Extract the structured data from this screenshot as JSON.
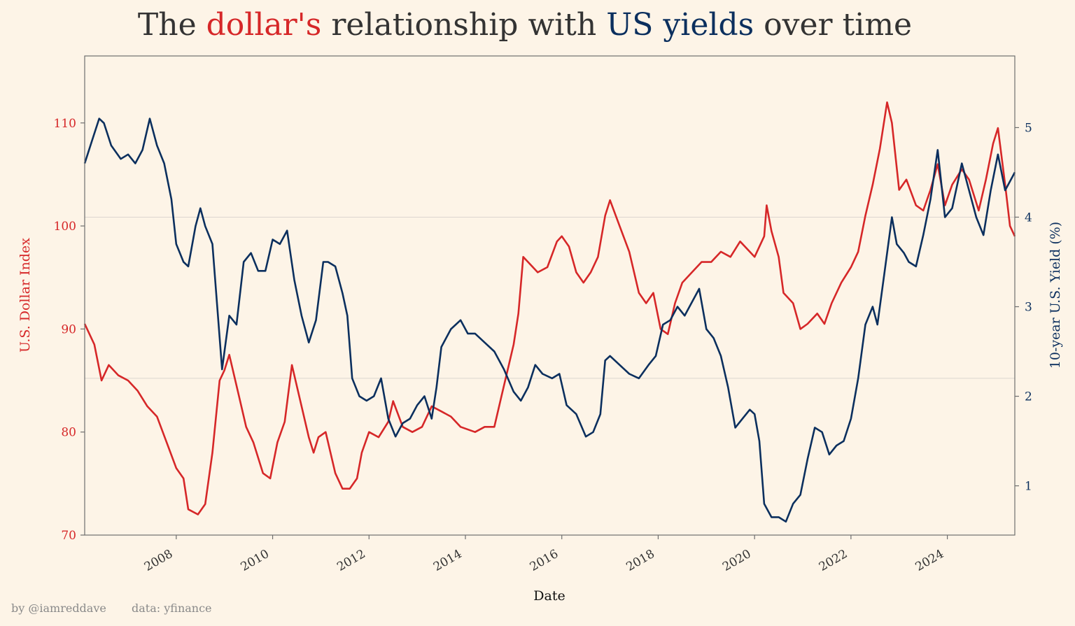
{
  "title": {
    "parts": [
      {
        "text": "The",
        "color": "#333333"
      },
      {
        "text": "dollar's",
        "color": "#d62728"
      },
      {
        "text": "relationship with",
        "color": "#333333"
      },
      {
        "text": "US yields",
        "color": "#0b2f5e"
      },
      {
        "text": "over time",
        "color": "#333333"
      }
    ]
  },
  "credits": {
    "author": "by @iamreddave",
    "source": "data: yfinance"
  },
  "colors": {
    "background": "#fdf4e7",
    "dollar": "#d62728",
    "yield": "#0b2f5e",
    "axis": "#6e6e6e",
    "grid": "#dcd6d0"
  },
  "chart_data": {
    "type": "line",
    "xlabel": "Date",
    "ylabel_left": "U.S. Dollar Index",
    "ylabel_right": "10-year U.S. Yield (%)",
    "xlim": [
      2006.1,
      2025.4
    ],
    "ylim_left": [
      70,
      116.5
    ],
    "ylim_right": [
      0.45,
      5.8
    ],
    "x_ticks": [
      2008,
      2010,
      2012,
      2014,
      2016,
      2018,
      2020,
      2022,
      2024
    ],
    "x_tick_labels": [
      "2008",
      "2010",
      "2012",
      "2014",
      "2016",
      "2018",
      "2020",
      "2022",
      "2024"
    ],
    "y_ticks_left": [
      70,
      80,
      90,
      100,
      110
    ],
    "y_tick_labels_left": [
      "70",
      "80",
      "90",
      "100",
      "110"
    ],
    "y_ticks_right": [
      1,
      2,
      3,
      4,
      5
    ],
    "y_tick_labels_right": [
      "1",
      "2",
      "3",
      "4",
      "5"
    ],
    "grid": "horizontal-right-axis",
    "series": [
      {
        "name": "U.S. Dollar Index",
        "axis": "left",
        "color": "#d62728",
        "points": [
          [
            2006.1,
            90.5
          ],
          [
            2006.3,
            88.5
          ],
          [
            2006.45,
            85.0
          ],
          [
            2006.6,
            86.5
          ],
          [
            2006.8,
            85.5
          ],
          [
            2007.0,
            85.0
          ],
          [
            2007.2,
            84.0
          ],
          [
            2007.4,
            82.5
          ],
          [
            2007.6,
            81.5
          ],
          [
            2007.8,
            79.0
          ],
          [
            2008.0,
            76.5
          ],
          [
            2008.15,
            75.5
          ],
          [
            2008.25,
            72.5
          ],
          [
            2008.45,
            72.0
          ],
          [
            2008.6,
            73.0
          ],
          [
            2008.75,
            78.0
          ],
          [
            2008.9,
            85.0
          ],
          [
            2009.0,
            86.0
          ],
          [
            2009.1,
            87.5
          ],
          [
            2009.2,
            85.5
          ],
          [
            2009.3,
            83.5
          ],
          [
            2009.45,
            80.5
          ],
          [
            2009.6,
            79.0
          ],
          [
            2009.8,
            76.0
          ],
          [
            2009.95,
            75.5
          ],
          [
            2010.1,
            79.0
          ],
          [
            2010.25,
            81.0
          ],
          [
            2010.4,
            86.5
          ],
          [
            2010.5,
            84.5
          ],
          [
            2010.6,
            82.5
          ],
          [
            2010.75,
            79.5
          ],
          [
            2010.85,
            78.0
          ],
          [
            2010.95,
            79.5
          ],
          [
            2011.1,
            80.0
          ],
          [
            2011.3,
            76.0
          ],
          [
            2011.45,
            74.5
          ],
          [
            2011.6,
            74.5
          ],
          [
            2011.75,
            75.5
          ],
          [
            2011.85,
            78.0
          ],
          [
            2012.0,
            80.0
          ],
          [
            2012.2,
            79.5
          ],
          [
            2012.4,
            81.0
          ],
          [
            2012.5,
            83.0
          ],
          [
            2012.7,
            80.5
          ],
          [
            2012.9,
            80.0
          ],
          [
            2013.1,
            80.5
          ],
          [
            2013.3,
            82.5
          ],
          [
            2013.5,
            82.0
          ],
          [
            2013.7,
            81.5
          ],
          [
            2013.9,
            80.5
          ],
          [
            2014.2,
            80.0
          ],
          [
            2014.4,
            80.5
          ],
          [
            2014.6,
            80.5
          ],
          [
            2014.75,
            83.5
          ],
          [
            2014.9,
            86.5
          ],
          [
            2015.0,
            88.5
          ],
          [
            2015.1,
            91.5
          ],
          [
            2015.2,
            97.0
          ],
          [
            2015.3,
            96.5
          ],
          [
            2015.5,
            95.5
          ],
          [
            2015.7,
            96.0
          ],
          [
            2015.9,
            98.5
          ],
          [
            2016.0,
            99.0
          ],
          [
            2016.15,
            98.0
          ],
          [
            2016.3,
            95.5
          ],
          [
            2016.45,
            94.5
          ],
          [
            2016.6,
            95.5
          ],
          [
            2016.75,
            97.0
          ],
          [
            2016.9,
            101.0
          ],
          [
            2017.0,
            102.5
          ],
          [
            2017.2,
            100.0
          ],
          [
            2017.4,
            97.5
          ],
          [
            2017.6,
            93.5
          ],
          [
            2017.75,
            92.5
          ],
          [
            2017.9,
            93.5
          ],
          [
            2018.05,
            90.0
          ],
          [
            2018.2,
            89.5
          ],
          [
            2018.35,
            92.5
          ],
          [
            2018.5,
            94.5
          ],
          [
            2018.7,
            95.5
          ],
          [
            2018.9,
            96.5
          ],
          [
            2019.1,
            96.5
          ],
          [
            2019.3,
            97.5
          ],
          [
            2019.5,
            97.0
          ],
          [
            2019.7,
            98.5
          ],
          [
            2019.9,
            97.5
          ],
          [
            2020.0,
            97.0
          ],
          [
            2020.2,
            99.0
          ],
          [
            2020.25,
            102.0
          ],
          [
            2020.35,
            99.5
          ],
          [
            2020.5,
            97.0
          ],
          [
            2020.6,
            93.5
          ],
          [
            2020.8,
            92.5
          ],
          [
            2020.95,
            90.0
          ],
          [
            2021.1,
            90.5
          ],
          [
            2021.3,
            91.5
          ],
          [
            2021.45,
            90.5
          ],
          [
            2021.6,
            92.5
          ],
          [
            2021.8,
            94.5
          ],
          [
            2022.0,
            96.0
          ],
          [
            2022.15,
            97.5
          ],
          [
            2022.3,
            101.0
          ],
          [
            2022.45,
            104.0
          ],
          [
            2022.6,
            107.5
          ],
          [
            2022.75,
            112.0
          ],
          [
            2022.85,
            110.0
          ],
          [
            2023.0,
            103.5
          ],
          [
            2023.15,
            104.5
          ],
          [
            2023.35,
            102.0
          ],
          [
            2023.5,
            101.5
          ],
          [
            2023.65,
            103.5
          ],
          [
            2023.8,
            106.0
          ],
          [
            2023.95,
            102.0
          ],
          [
            2024.1,
            104.0
          ],
          [
            2024.3,
            105.5
          ],
          [
            2024.45,
            104.5
          ],
          [
            2024.65,
            101.5
          ],
          [
            2024.8,
            104.5
          ],
          [
            2024.95,
            108.0
          ],
          [
            2025.05,
            109.5
          ],
          [
            2025.2,
            104.0
          ],
          [
            2025.3,
            100.0
          ],
          [
            2025.4,
            99.0
          ]
        ]
      },
      {
        "name": "10-year U.S. Yield (%)",
        "axis": "right",
        "color": "#0b2f5e",
        "points": [
          [
            2006.1,
            4.6
          ],
          [
            2006.25,
            4.85
          ],
          [
            2006.4,
            5.1
          ],
          [
            2006.5,
            5.05
          ],
          [
            2006.65,
            4.8
          ],
          [
            2006.85,
            4.65
          ],
          [
            2007.0,
            4.7
          ],
          [
            2007.15,
            4.6
          ],
          [
            2007.3,
            4.75
          ],
          [
            2007.45,
            5.1
          ],
          [
            2007.6,
            4.8
          ],
          [
            2007.75,
            4.6
          ],
          [
            2007.9,
            4.2
          ],
          [
            2008.0,
            3.7
          ],
          [
            2008.15,
            3.5
          ],
          [
            2008.25,
            3.45
          ],
          [
            2008.4,
            3.9
          ],
          [
            2008.5,
            4.1
          ],
          [
            2008.6,
            3.9
          ],
          [
            2008.75,
            3.7
          ],
          [
            2008.85,
            3.0
          ],
          [
            2008.95,
            2.3
          ],
          [
            2009.1,
            2.9
          ],
          [
            2009.25,
            2.8
          ],
          [
            2009.4,
            3.5
          ],
          [
            2009.55,
            3.6
          ],
          [
            2009.7,
            3.4
          ],
          [
            2009.85,
            3.4
          ],
          [
            2010.0,
            3.75
          ],
          [
            2010.15,
            3.7
          ],
          [
            2010.3,
            3.85
          ],
          [
            2010.45,
            3.3
          ],
          [
            2010.6,
            2.9
          ],
          [
            2010.75,
            2.6
          ],
          [
            2010.9,
            2.85
          ],
          [
            2011.05,
            3.5
          ],
          [
            2011.15,
            3.5
          ],
          [
            2011.3,
            3.45
          ],
          [
            2011.45,
            3.15
          ],
          [
            2011.55,
            2.9
          ],
          [
            2011.65,
            2.2
          ],
          [
            2011.8,
            2.0
          ],
          [
            2011.95,
            1.95
          ],
          [
            2012.1,
            2.0
          ],
          [
            2012.25,
            2.2
          ],
          [
            2012.4,
            1.75
          ],
          [
            2012.55,
            1.55
          ],
          [
            2012.7,
            1.7
          ],
          [
            2012.85,
            1.75
          ],
          [
            2013.0,
            1.9
          ],
          [
            2013.15,
            2.0
          ],
          [
            2013.3,
            1.75
          ],
          [
            2013.4,
            2.1
          ],
          [
            2013.5,
            2.55
          ],
          [
            2013.7,
            2.75
          ],
          [
            2013.9,
            2.85
          ],
          [
            2014.05,
            2.7
          ],
          [
            2014.2,
            2.7
          ],
          [
            2014.4,
            2.6
          ],
          [
            2014.6,
            2.5
          ],
          [
            2014.8,
            2.3
          ],
          [
            2015.0,
            2.05
          ],
          [
            2015.15,
            1.95
          ],
          [
            2015.3,
            2.1
          ],
          [
            2015.45,
            2.35
          ],
          [
            2015.6,
            2.25
          ],
          [
            2015.8,
            2.2
          ],
          [
            2015.95,
            2.25
          ],
          [
            2016.1,
            1.9
          ],
          [
            2016.3,
            1.8
          ],
          [
            2016.5,
            1.55
          ],
          [
            2016.65,
            1.6
          ],
          [
            2016.8,
            1.8
          ],
          [
            2016.9,
            2.4
          ],
          [
            2017.0,
            2.45
          ],
          [
            2017.2,
            2.35
          ],
          [
            2017.4,
            2.25
          ],
          [
            2017.6,
            2.2
          ],
          [
            2017.8,
            2.35
          ],
          [
            2017.95,
            2.45
          ],
          [
            2018.1,
            2.8
          ],
          [
            2018.25,
            2.85
          ],
          [
            2018.4,
            3.0
          ],
          [
            2018.55,
            2.9
          ],
          [
            2018.7,
            3.05
          ],
          [
            2018.85,
            3.2
          ],
          [
            2019.0,
            2.75
          ],
          [
            2019.15,
            2.65
          ],
          [
            2019.3,
            2.45
          ],
          [
            2019.45,
            2.1
          ],
          [
            2019.6,
            1.65
          ],
          [
            2019.75,
            1.75
          ],
          [
            2019.9,
            1.85
          ],
          [
            2020.0,
            1.8
          ],
          [
            2020.1,
            1.5
          ],
          [
            2020.2,
            0.8
          ],
          [
            2020.35,
            0.65
          ],
          [
            2020.5,
            0.65
          ],
          [
            2020.65,
            0.6
          ],
          [
            2020.8,
            0.8
          ],
          [
            2020.95,
            0.9
          ],
          [
            2021.1,
            1.3
          ],
          [
            2021.25,
            1.65
          ],
          [
            2021.4,
            1.6
          ],
          [
            2021.55,
            1.35
          ],
          [
            2021.7,
            1.45
          ],
          [
            2021.85,
            1.5
          ],
          [
            2022.0,
            1.75
          ],
          [
            2022.15,
            2.2
          ],
          [
            2022.3,
            2.8
          ],
          [
            2022.45,
            3.0
          ],
          [
            2022.55,
            2.8
          ],
          [
            2022.7,
            3.4
          ],
          [
            2022.85,
            4.0
          ],
          [
            2022.95,
            3.7
          ],
          [
            2023.1,
            3.6
          ],
          [
            2023.2,
            3.5
          ],
          [
            2023.35,
            3.45
          ],
          [
            2023.5,
            3.8
          ],
          [
            2023.65,
            4.2
          ],
          [
            2023.8,
            4.75
          ],
          [
            2023.95,
            4.0
          ],
          [
            2024.1,
            4.1
          ],
          [
            2024.3,
            4.6
          ],
          [
            2024.45,
            4.3
          ],
          [
            2024.6,
            4.0
          ],
          [
            2024.75,
            3.8
          ],
          [
            2024.9,
            4.3
          ],
          [
            2025.05,
            4.7
          ],
          [
            2025.2,
            4.3
          ],
          [
            2025.3,
            4.4
          ],
          [
            2025.4,
            4.5
          ]
        ]
      }
    ]
  }
}
